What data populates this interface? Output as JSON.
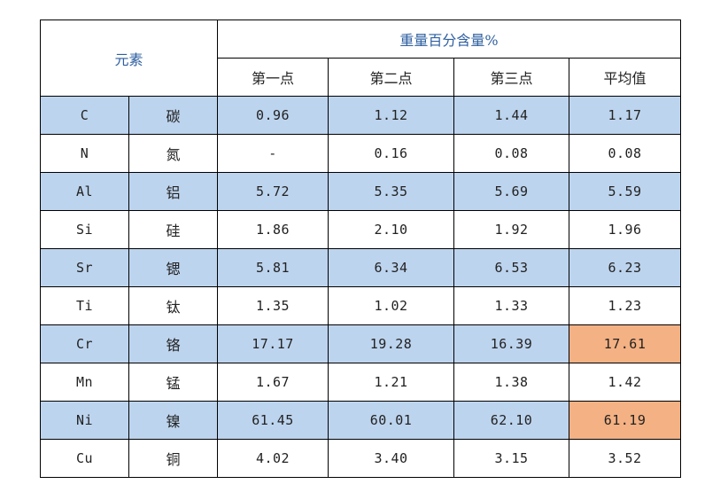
{
  "table": {
    "element_header": "元素",
    "group_header": "重量百分含量%",
    "sub_headers": [
      "第一点",
      "第二点",
      "第三点",
      "平均值"
    ],
    "rows": [
      {
        "symbol": "C",
        "name": "碳",
        "values": [
          "0.96",
          "1.12",
          "1.44",
          "1.17"
        ]
      },
      {
        "symbol": "N",
        "name": "氮",
        "values": [
          "-",
          "0.16",
          "0.08",
          "0.08"
        ]
      },
      {
        "symbol": "Al",
        "name": "铝",
        "values": [
          "5.72",
          "5.35",
          "5.69",
          "5.59"
        ]
      },
      {
        "symbol": "Si",
        "name": "硅",
        "values": [
          "1.86",
          "2.10",
          "1.92",
          "1.96"
        ]
      },
      {
        "symbol": "Sr",
        "name": "锶",
        "values": [
          "5.81",
          "6.34",
          "6.53",
          "6.23"
        ]
      },
      {
        "symbol": "Ti",
        "name": "钛",
        "values": [
          "1.35",
          "1.02",
          "1.33",
          "1.23"
        ]
      },
      {
        "symbol": "Cr",
        "name": "铬",
        "values": [
          "17.17",
          "19.28",
          "16.39",
          "17.61"
        ]
      },
      {
        "symbol": "Mn",
        "name": "锰",
        "values": [
          "1.67",
          "1.21",
          "1.38",
          "1.42"
        ]
      },
      {
        "symbol": "Ni",
        "name": "镍",
        "values": [
          "61.45",
          "60.01",
          "62.10",
          "61.19"
        ]
      },
      {
        "symbol": "Cu",
        "name": "铜",
        "values": [
          "4.02",
          "3.40",
          "3.15",
          "3.52"
        ]
      }
    ]
  },
  "colors": {
    "row_shade": "#bdd4ee",
    "highlight": "#f4b183",
    "header_text": "#2e5fa0"
  }
}
